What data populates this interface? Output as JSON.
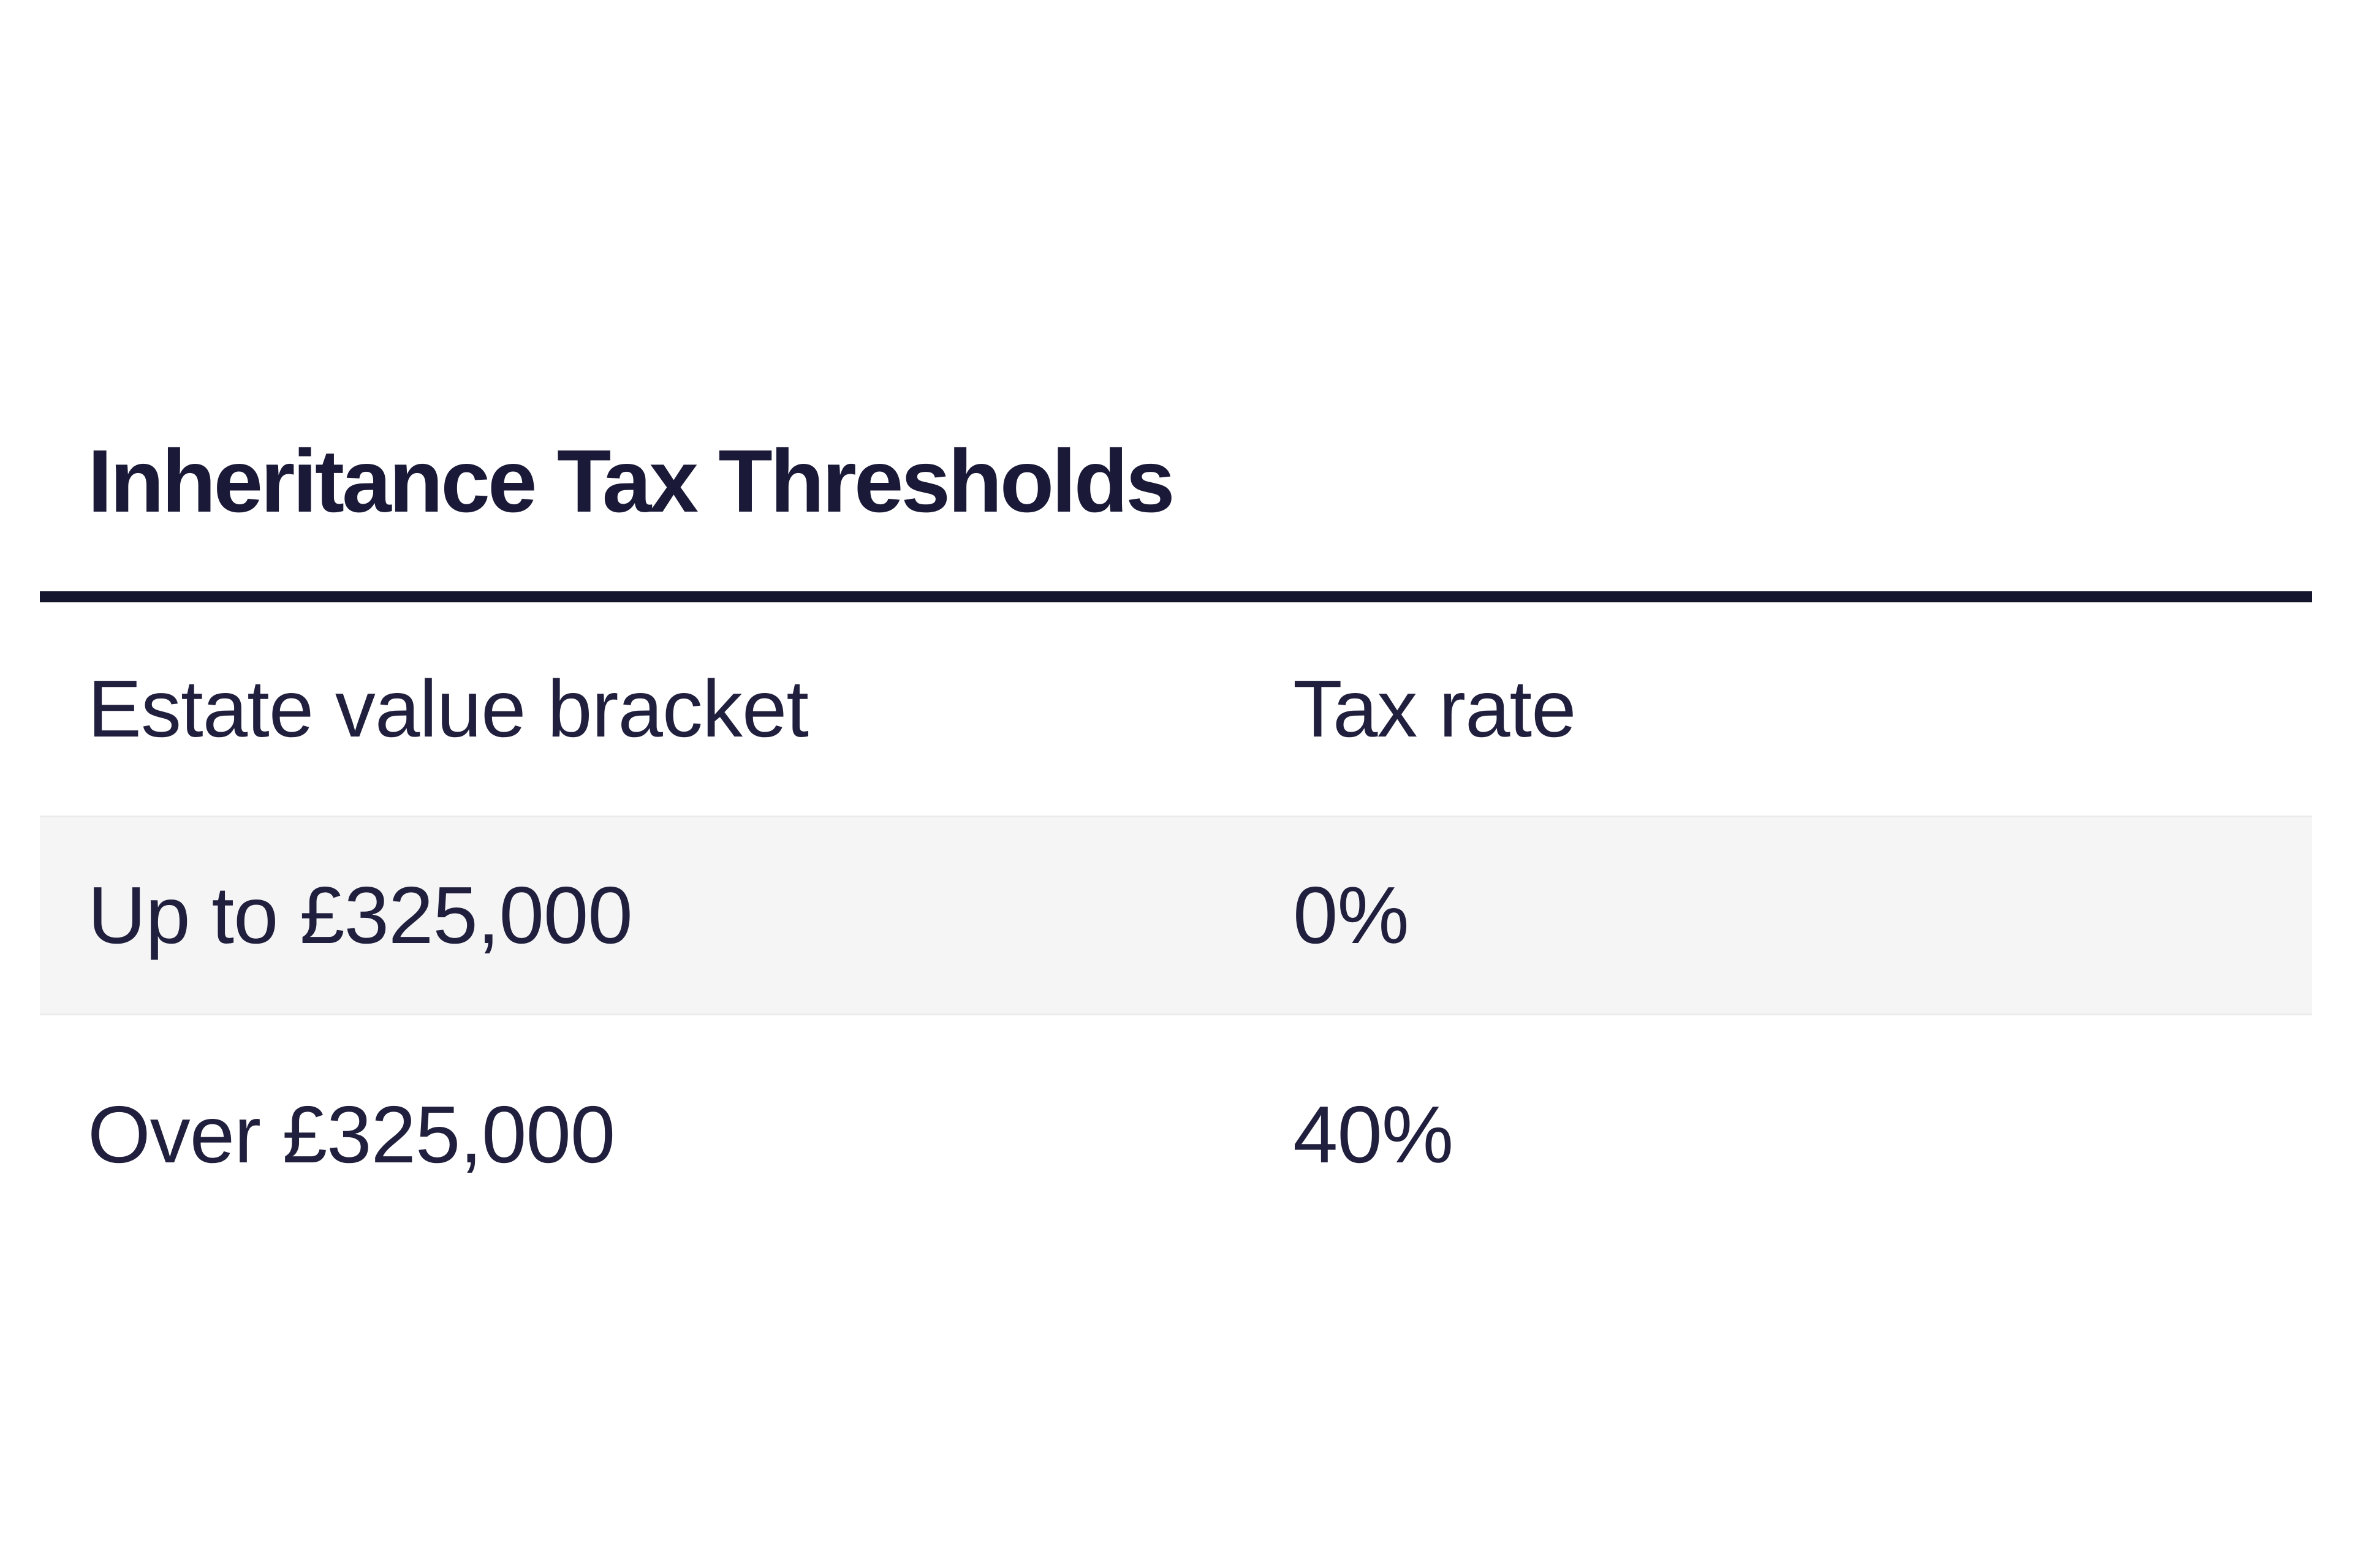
{
  "document": {
    "title": "Inheritance Tax Thresholds",
    "table": {
      "columns": [
        {
          "label": "Estate value bracket"
        },
        {
          "label": "Tax rate"
        }
      ],
      "rows": [
        {
          "bracket": "Up to £325,000",
          "rate": "0%"
        },
        {
          "bracket": "Over £325,000",
          "rate": "40%"
        }
      ]
    },
    "colors": {
      "page_background": "#ffffff",
      "title_text": "#1a1a38",
      "divider": "#15152d",
      "body_text": "#20203e",
      "alt_row_background": "#f5f5f6",
      "alt_row_border": "#ebebeb"
    }
  }
}
